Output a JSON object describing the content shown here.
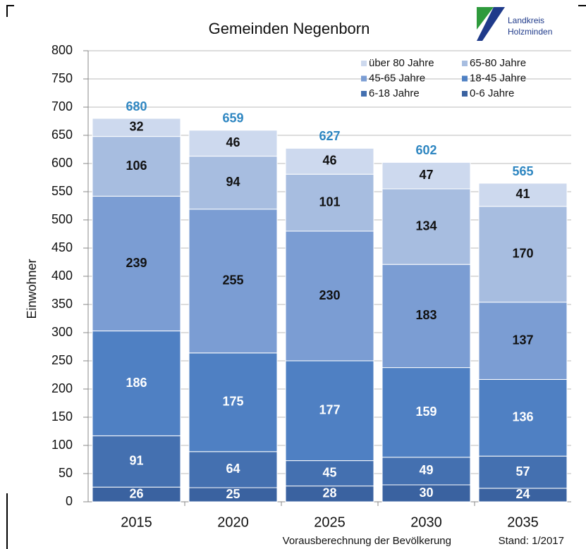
{
  "chart_data": {
    "type": "stacked_bar",
    "title": "Gemeinden Negenborn",
    "logo": [
      "Landkreis",
      "Holzminden"
    ],
    "y_label": "Einwohner",
    "footer": [
      "Vorausberechnung der Bevölkerung",
      "Stand: 1/2017"
    ],
    "categories": [
      "2015",
      "2020",
      "2025",
      "2030",
      "2035"
    ],
    "series": [
      {
        "name": "0-6 Jahre",
        "color": "#3a62a0",
        "label_color": "#ffffff",
        "values": [
          26,
          25,
          28,
          30,
          24
        ]
      },
      {
        "name": "6-18 Jahre",
        "color": "#4470b0",
        "label_color": "#ffffff",
        "values": [
          91,
          64,
          45,
          49,
          57
        ]
      },
      {
        "name": "18-45 Jahre",
        "color": "#4f80c3",
        "label_color": "#ffffff",
        "values": [
          186,
          175,
          177,
          159,
          136
        ]
      },
      {
        "name": "45-65 Jahre",
        "color": "#7b9dd3",
        "label_color": "#111111",
        "values": [
          239,
          255,
          230,
          183,
          137
        ]
      },
      {
        "name": "65-80 Jahre",
        "color": "#a7bde0",
        "label_color": "#111111",
        "values": [
          106,
          94,
          101,
          134,
          170
        ]
      },
      {
        "name": "über 80 Jahre",
        "color": "#cdd9ee",
        "label_color": "#111111",
        "values": [
          32,
          46,
          46,
          47,
          41
        ]
      }
    ],
    "totals": [
      680,
      659,
      627,
      602,
      565
    ],
    "totals_color": "#2e86c1",
    "ylim": [
      0,
      800
    ],
    "yticks": [
      0,
      50,
      100,
      150,
      200,
      250,
      300,
      350,
      400,
      450,
      500,
      550,
      600,
      650,
      700,
      750,
      800
    ],
    "grid": true,
    "legend": "top-right"
  }
}
